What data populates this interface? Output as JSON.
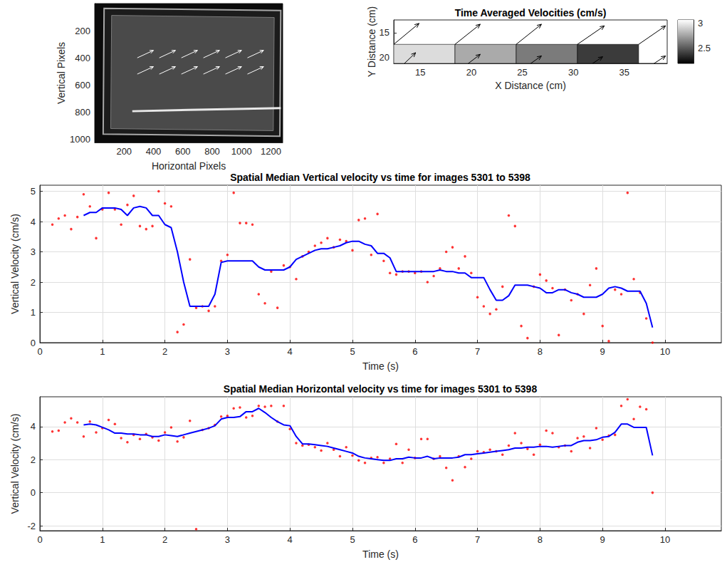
{
  "chart_data": [
    {
      "type": "image",
      "xlabel": "Horizontal Pixels",
      "ylabel": "Vertical Pixels",
      "xlim": [
        0,
        1280
      ],
      "ylim": [
        0,
        1024
      ],
      "xticks": [
        200,
        400,
        600,
        800,
        1000,
        1200
      ],
      "yticks": [
        200,
        400,
        600,
        800,
        1000
      ],
      "grid": false,
      "color": "#ffffff",
      "arrows": [
        {
          "x": 290,
          "y": 400,
          "u": 110,
          "v": -55
        },
        {
          "x": 440,
          "y": 400,
          "u": 110,
          "v": -55
        },
        {
          "x": 590,
          "y": 400,
          "u": 110,
          "v": -55
        },
        {
          "x": 740,
          "y": 400,
          "u": 110,
          "v": -55
        },
        {
          "x": 890,
          "y": 400,
          "u": 110,
          "v": -55
        },
        {
          "x": 1040,
          "y": 400,
          "u": 110,
          "v": -55
        },
        {
          "x": 290,
          "y": 520,
          "u": 110,
          "v": -55
        },
        {
          "x": 440,
          "y": 520,
          "u": 110,
          "v": -55
        },
        {
          "x": 590,
          "y": 520,
          "u": 110,
          "v": -55
        },
        {
          "x": 740,
          "y": 520,
          "u": 110,
          "v": -55
        },
        {
          "x": 890,
          "y": 520,
          "u": 110,
          "v": -55
        },
        {
          "x": 1040,
          "y": 520,
          "u": 110,
          "v": -55
        }
      ]
    },
    {
      "type": "quiver",
      "title": "Time Averaged Velocities (cm/s)",
      "xlabel": "X Distance (cm)",
      "ylabel": "Y Distance (cm)",
      "xlim": [
        12.4,
        39.2
      ],
      "ylim": [
        12.4,
        21.3
      ],
      "xticks": [
        15,
        20,
        25,
        30,
        35
      ],
      "yticks": [
        15,
        20
      ],
      "grid": false,
      "color": "#000000",
      "cells": [
        {
          "x": [
            12.4,
            18.4
          ],
          "y": [
            17.4,
            21.3
          ],
          "value": 2.95
        },
        {
          "x": [
            18.4,
            24.4
          ],
          "y": [
            17.4,
            21.3
          ],
          "value": 2.78
        },
        {
          "x": [
            24.4,
            30.4
          ],
          "y": [
            17.4,
            21.3
          ],
          "value": 2.62
        },
        {
          "x": [
            30.4,
            36.4
          ],
          "y": [
            17.4,
            21.3
          ],
          "value": 2.4
        }
      ],
      "arrows": [
        {
          "x": 12.4,
          "y": 17.4,
          "u": 1.5,
          "v": -2.6
        },
        {
          "x": 18.4,
          "y": 17.4,
          "u": 1.5,
          "v": -2.5
        },
        {
          "x": 24.4,
          "y": 17.4,
          "u": 1.5,
          "v": -2.5
        },
        {
          "x": 30.4,
          "y": 17.4,
          "u": 1.6,
          "v": -2.3
        },
        {
          "x": 36.4,
          "y": 17.4,
          "u": 1.6,
          "v": -2.3
        },
        {
          "x": 12.4,
          "y": 23.4,
          "u": 1.3,
          "v": -2.6
        },
        {
          "x": 18.4,
          "y": 23.4,
          "u": 1.5,
          "v": -2.4
        },
        {
          "x": 24.4,
          "y": 23.4,
          "u": 1.5,
          "v": -2.2
        },
        {
          "x": 30.4,
          "y": 23.4,
          "u": 1.5,
          "v": -2.1
        },
        {
          "x": 36.4,
          "y": 23.4,
          "u": 1.6,
          "v": -2.2
        }
      ],
      "colorbar": {
        "range": [
          2.2,
          3.07
        ],
        "ticks": [
          2.5,
          3
        ]
      }
    },
    {
      "type": "line",
      "title": "Spatial Median Vertical velocity vs time for images 5301 to 5398",
      "xlabel": "Time (s)",
      "ylabel": "Vertical Velocity (cm/s)",
      "xlim": [
        0,
        10.9
      ],
      "ylim": [
        0,
        5.2
      ],
      "xticks": [
        0,
        1,
        2,
        3,
        4,
        5,
        6,
        7,
        8,
        9,
        10
      ],
      "yticks": [
        0,
        1,
        2,
        3,
        4,
        5
      ],
      "grid": true,
      "series": [
        {
          "type": "scatter",
          "color": "#ff0000",
          "marker": "dot",
          "x": [
            0.2,
            0.3,
            0.4,
            0.5,
            0.6,
            0.7,
            0.8,
            0.9,
            1,
            1.1,
            1.2,
            1.3,
            1.4,
            1.5,
            1.6,
            1.7,
            1.8,
            1.9,
            2,
            2.1,
            2.2,
            2.3,
            2.4,
            2.5,
            2.6,
            2.7,
            2.8,
            2.9,
            3,
            3.1,
            3.2,
            3.3,
            3.4,
            3.5,
            3.6,
            3.7,
            3.8,
            3.9,
            4,
            4.1,
            4.2,
            4.3,
            4.4,
            4.5,
            4.6,
            4.7,
            4.8,
            4.9,
            5,
            5.1,
            5.2,
            5.3,
            5.4,
            5.5,
            5.6,
            5.7,
            5.8,
            5.9,
            6,
            6.1,
            6.2,
            6.3,
            6.4,
            6.5,
            6.6,
            6.7,
            6.8,
            6.9,
            7,
            7.1,
            7.2,
            7.3,
            7.4,
            7.5,
            7.6,
            7.7,
            7.8,
            7.9,
            8,
            8.1,
            8.2,
            8.3,
            8.4,
            8.5,
            8.6,
            8.7,
            8.8,
            8.9,
            9,
            9.1,
            9.2,
            9.3,
            9.4,
            9.5,
            9.6,
            9.7,
            9.8
          ],
          "values": [
            3.9,
            4.1,
            4.2,
            3.75,
            4.15,
            4.9,
            4.5,
            3.45,
            4.4,
            4.95,
            4.4,
            3.9,
            4.55,
            4.85,
            3.85,
            3.75,
            3.85,
            5.0,
            4.6,
            4.5,
            0.35,
            0.6,
            2.75,
            1.15,
            1.2,
            1.05,
            1.2,
            2.7,
            2.9,
            4.95,
            3.95,
            3.95,
            3.9,
            1.6,
            1.3,
            2.35,
            1.15,
            2.55,
            2.5,
            2.1,
            2.85,
            3.0,
            3.2,
            3.3,
            3.45,
            3.15,
            3.4,
            3.35,
            3.05,
            4.05,
            4.1,
            2.9,
            4.25,
            2.7,
            2.3,
            2.25,
            2.35,
            2.35,
            2.3,
            2.35,
            2.0,
            2.2,
            2.45,
            3.0,
            3.15,
            2.45,
            2.85,
            2.3,
            1.5,
            1.2,
            0.95,
            1.1,
            1.85,
            4.2,
            3.85,
            0.55,
            0.15,
            1.85,
            2.25,
            2.05,
            1.8,
            0.25,
            1.75,
            1.4,
            1.6,
            0.95,
            1.9,
            2.45,
            0.55,
            0.05,
            1.75,
            1.6,
            4.95,
            2.1,
            1.65,
            0.8,
            0
          ]
        },
        {
          "type": "line",
          "color": "#0000ff",
          "line_style": "solid",
          "x": [
            0.7,
            0.8,
            0.9,
            1,
            1.1,
            1.2,
            1.3,
            1.4,
            1.5,
            1.6,
            1.7,
            1.8,
            1.9,
            2,
            2.1,
            2.2,
            2.3,
            2.4,
            2.5,
            2.6,
            2.7,
            2.8,
            2.9,
            3,
            3.1,
            3.2,
            3.3,
            3.4,
            3.5,
            3.6,
            3.7,
            3.8,
            3.9,
            4,
            4.1,
            4.2,
            4.3,
            4.4,
            4.5,
            4.6,
            4.7,
            4.8,
            4.9,
            5,
            5.1,
            5.2,
            5.3,
            5.4,
            5.5,
            5.6,
            5.7,
            5.8,
            5.9,
            6,
            6.1,
            6.2,
            6.3,
            6.4,
            6.5,
            6.6,
            6.7,
            6.8,
            6.9,
            7,
            7.1,
            7.2,
            7.3,
            7.4,
            7.5,
            7.6,
            7.7,
            7.8,
            7.9,
            8,
            8.1,
            8.2,
            8.3,
            8.4,
            8.5,
            8.6,
            8.7,
            8.8,
            8.9,
            9,
            9.1,
            9.2,
            9.3,
            9.4,
            9.5,
            9.6,
            9.7,
            9.8
          ],
          "values": [
            4.2,
            4.3,
            4.3,
            4.45,
            4.45,
            4.45,
            4.4,
            4.2,
            4.45,
            4.5,
            4.45,
            4.2,
            4.2,
            3.9,
            3.8,
            3.0,
            2.0,
            1.2,
            1.2,
            1.2,
            1.2,
            1.6,
            2.65,
            2.7,
            2.7,
            2.7,
            2.7,
            2.7,
            2.5,
            2.4,
            2.4,
            2.4,
            2.4,
            2.5,
            2.75,
            2.85,
            2.95,
            3.05,
            3.1,
            3.1,
            3.15,
            3.2,
            3.3,
            3.35,
            3.35,
            3.25,
            3.2,
            2.95,
            2.95,
            2.8,
            2.35,
            2.35,
            2.35,
            2.35,
            2.35,
            2.35,
            2.35,
            2.4,
            2.35,
            2.35,
            2.3,
            2.3,
            2.15,
            2.15,
            2.15,
            1.75,
            1.4,
            1.4,
            1.55,
            1.9,
            1.9,
            1.9,
            1.85,
            1.8,
            1.65,
            1.65,
            1.75,
            1.75,
            1.65,
            1.6,
            1.5,
            1.5,
            1.5,
            1.6,
            1.8,
            1.85,
            1.8,
            1.7,
            1.7,
            1.7,
            1.3,
            0.5
          ]
        }
      ]
    },
    {
      "type": "line",
      "title": "Spatial Median Horizontal velocity vs time for images 5301 to 5398",
      "xlabel": "Time (s)",
      "ylabel": "Vertical Velocity (cm/s)",
      "xlim": [
        0,
        10.9
      ],
      "ylim": [
        -2.3,
        5.8
      ],
      "xticks": [
        0,
        1,
        2,
        3,
        4,
        5,
        6,
        7,
        8,
        9,
        10
      ],
      "yticks": [
        -2,
        0,
        2,
        4
      ],
      "grid": true,
      "series": [
        {
          "type": "scatter",
          "color": "#ff0000",
          "marker": "dot",
          "x": [
            0.2,
            0.3,
            0.4,
            0.5,
            0.6,
            0.7,
            0.8,
            0.9,
            1,
            1.1,
            1.2,
            1.3,
            1.4,
            1.5,
            1.6,
            1.7,
            1.8,
            1.9,
            2,
            2.1,
            2.2,
            2.3,
            2.4,
            2.5,
            2.6,
            2.7,
            2.8,
            2.9,
            3,
            3.1,
            3.2,
            3.3,
            3.4,
            3.5,
            3.6,
            3.7,
            3.8,
            3.9,
            4,
            4.1,
            4.2,
            4.3,
            4.4,
            4.5,
            4.6,
            4.7,
            4.8,
            4.9,
            5,
            5.1,
            5.2,
            5.3,
            5.4,
            5.5,
            5.6,
            5.7,
            5.8,
            5.9,
            6,
            6.1,
            6.2,
            6.3,
            6.4,
            6.5,
            6.6,
            6.7,
            6.8,
            6.9,
            7,
            7.1,
            7.2,
            7.3,
            7.4,
            7.5,
            7.6,
            7.7,
            7.8,
            7.9,
            8,
            8.1,
            8.2,
            8.3,
            8.4,
            8.5,
            8.6,
            8.7,
            8.8,
            8.9,
            9,
            9.1,
            9.2,
            9.3,
            9.4,
            9.5,
            9.6,
            9.7,
            9.8
          ],
          "values": [
            3.7,
            3.75,
            4.25,
            4.5,
            4.25,
            3.4,
            4.3,
            3.65,
            3.9,
            4.4,
            4.15,
            3.3,
            3.05,
            3.5,
            3.25,
            3.55,
            3.35,
            3.15,
            3.65,
            3.95,
            3.1,
            3.35,
            4.35,
            -2.2,
            3.8,
            3.9,
            4.1,
            4.6,
            4.65,
            5.1,
            5.15,
            4.55,
            4.65,
            5.25,
            5.2,
            5.25,
            4.3,
            5.25,
            3.85,
            3.0,
            2.85,
            2.9,
            2.75,
            2.55,
            3.0,
            2.6,
            2.2,
            2.75,
            2.25,
            1.95,
            1.8,
            2.1,
            2.15,
            1.8,
            2.05,
            2.95,
            1.8,
            2.6,
            2.1,
            3.25,
            3.25,
            2.05,
            2.2,
            1.5,
            0.75,
            2.2,
            1.55,
            2.05,
            2.5,
            2.45,
            2.6,
            2.5,
            2.3,
            2.85,
            3.6,
            3.0,
            2.65,
            2.3,
            2.9,
            3.75,
            3.6,
            2.75,
            2.85,
            2.5,
            3.3,
            3.4,
            2.7,
            3.9,
            3.2,
            3.45,
            3.5,
            5.25,
            5.65,
            4.45,
            5.2,
            5.05,
            0
          ]
        },
        {
          "type": "line",
          "color": "#0000ff",
          "line_style": "solid",
          "x": [
            0.7,
            0.8,
            0.9,
            1,
            1.1,
            1.2,
            1.3,
            1.4,
            1.5,
            1.6,
            1.7,
            1.8,
            1.9,
            2,
            2.1,
            2.2,
            2.3,
            2.4,
            2.5,
            2.6,
            2.7,
            2.8,
            2.9,
            3,
            3.1,
            3.2,
            3.3,
            3.4,
            3.5,
            3.6,
            3.7,
            3.8,
            3.9,
            4,
            4.1,
            4.2,
            4.3,
            4.4,
            4.5,
            4.6,
            4.7,
            4.8,
            4.9,
            5,
            5.1,
            5.2,
            5.3,
            5.4,
            5.5,
            5.6,
            5.7,
            5.8,
            5.9,
            6,
            6.1,
            6.2,
            6.3,
            6.4,
            6.5,
            6.6,
            6.7,
            6.8,
            6.9,
            7,
            7.1,
            7.2,
            7.3,
            7.4,
            7.5,
            7.6,
            7.7,
            7.8,
            7.9,
            8,
            8.1,
            8.2,
            8.3,
            8.4,
            8.5,
            8.6,
            8.7,
            8.8,
            8.9,
            9,
            9.1,
            9.2,
            9.3,
            9.4,
            9.5,
            9.6,
            9.7,
            9.8
          ],
          "values": [
            4.1,
            4.15,
            4.1,
            3.95,
            3.8,
            3.6,
            3.6,
            3.55,
            3.55,
            3.5,
            3.5,
            3.4,
            3.4,
            3.5,
            3.45,
            3.4,
            3.5,
            3.6,
            3.7,
            3.8,
            3.9,
            4.05,
            4.45,
            4.55,
            4.55,
            4.6,
            4.9,
            4.9,
            5.1,
            4.85,
            4.55,
            4.3,
            4.1,
            4.05,
            3.4,
            2.95,
            2.95,
            2.9,
            2.85,
            2.8,
            2.7,
            2.6,
            2.5,
            2.4,
            2.2,
            2.1,
            2.05,
            2.0,
            1.95,
            1.95,
            2.05,
            2.05,
            2.15,
            2.1,
            2.1,
            2.2,
            2.05,
            2.1,
            2.1,
            2.1,
            2.15,
            2.3,
            2.3,
            2.35,
            2.4,
            2.45,
            2.5,
            2.55,
            2.6,
            2.7,
            2.7,
            2.75,
            2.75,
            2.8,
            2.8,
            2.75,
            2.8,
            2.85,
            2.85,
            3.05,
            3.15,
            3.15,
            3.2,
            3.35,
            3.4,
            3.65,
            4.15,
            4.15,
            3.95,
            3.95,
            3.95,
            2.25
          ]
        }
      ]
    }
  ]
}
